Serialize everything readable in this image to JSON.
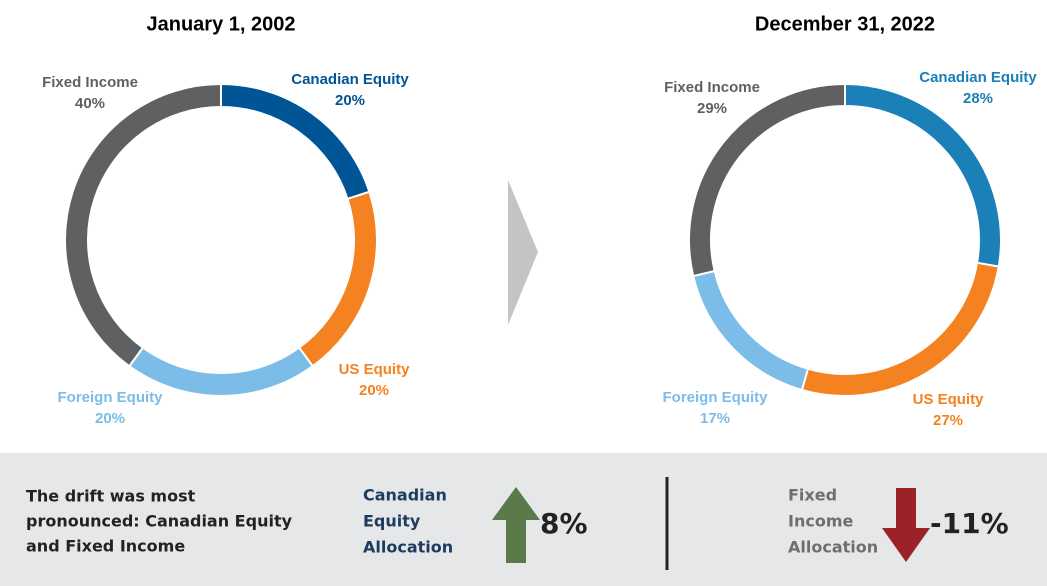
{
  "chart_data": [
    {
      "type": "pie",
      "title": "January 1, 2002",
      "categories": [
        "Canadian Equity",
        "US Equity",
        "Foreign Equity",
        "Fixed Income"
      ],
      "values": [
        20,
        20,
        20,
        40
      ],
      "value_labels": [
        "20%",
        "20%",
        "20%",
        "40%"
      ],
      "colors": [
        "#005596",
        "#f58220",
        "#7bbde8",
        "#5f6062"
      ]
    },
    {
      "type": "pie",
      "title": "December 31, 2022",
      "categories": [
        "Canadian Equity",
        "US Equity",
        "Foreign Equity",
        "Fixed Income"
      ],
      "values": [
        28,
        27,
        17,
        29
      ],
      "value_labels": [
        "28%",
        "27%",
        "17%",
        "29%"
      ],
      "colors": [
        "#1b80b8",
        "#f58220",
        "#7bbde8",
        "#5f6062"
      ]
    }
  ],
  "callout": {
    "summary": [
      "The drift was most",
      "pronounced: Canadian Equity",
      "and Fixed Income"
    ],
    "left_label": [
      "Canadian",
      "Equity",
      "Allocation"
    ],
    "left_change": "8%",
    "right_label": [
      "Fixed",
      "Income",
      "Allocation"
    ],
    "right_change": "-11%"
  }
}
